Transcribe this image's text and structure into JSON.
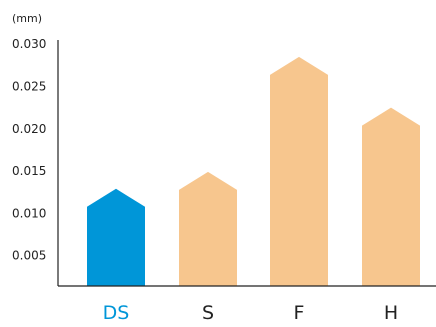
{
  "chart_data": {
    "type": "bar",
    "unit_label": "(mm)",
    "categories": [
      "DS",
      "S",
      "F",
      "H"
    ],
    "values": [
      0.0129,
      0.0149,
      0.0285,
      0.0225
    ],
    "ylim": [
      0.0014,
      0.0305
    ],
    "yticks": [
      "0.005",
      "0.010",
      "0.015",
      "0.020",
      "0.025",
      "0.030"
    ],
    "bar_colors": [
      "#0096d8",
      "#f7c68e",
      "#f7c68e",
      "#f7c68e"
    ],
    "label_colors": [
      "#0096d8",
      "#222222",
      "#222222",
      "#222222"
    ],
    "bar_shape": "pentagon-arrow",
    "grid": false,
    "legend": "none"
  }
}
